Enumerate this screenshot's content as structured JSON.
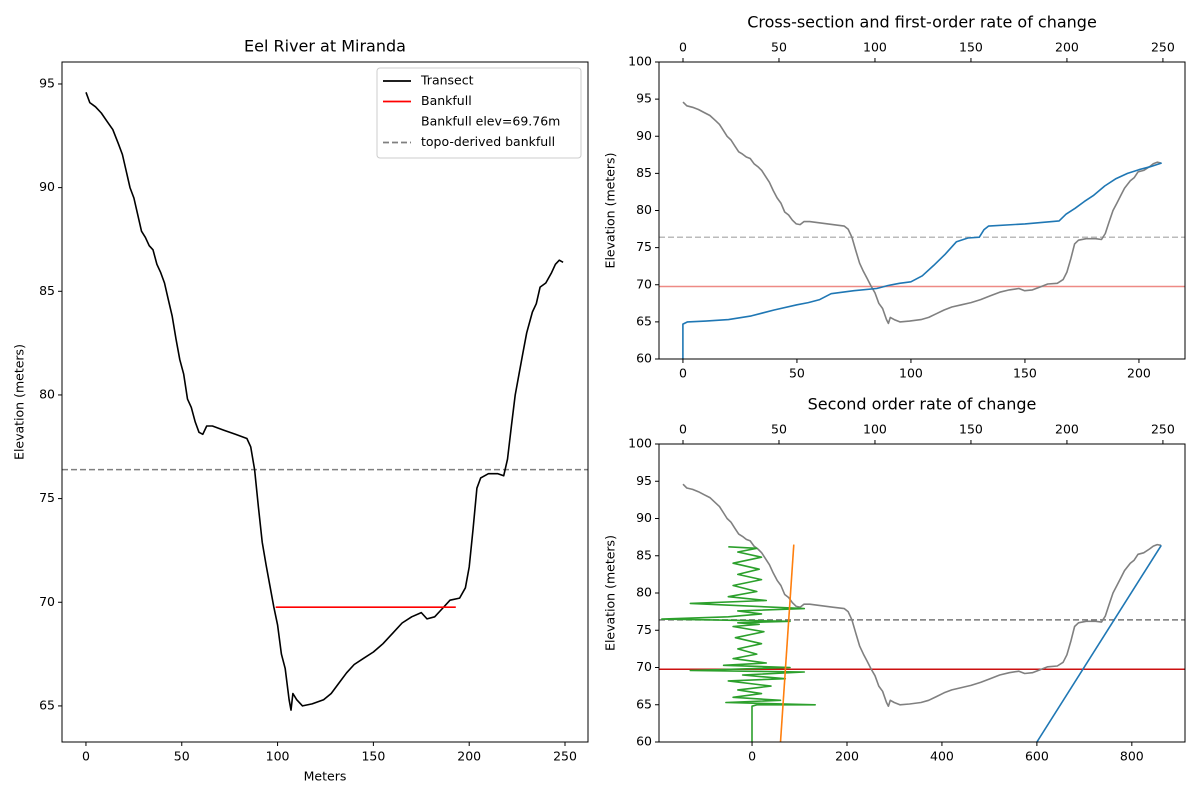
{
  "chart_data": [
    {
      "type": "line",
      "title": "Eel River at Miranda",
      "xlabel": "Meters",
      "ylabel": "Elevation (meters)",
      "xlim": [
        -12.5,
        262
      ],
      "xticks": [
        0,
        50,
        100,
        150,
        200,
        250
      ],
      "ylim": [
        63.26,
        96.06
      ],
      "yticks": [
        65,
        70,
        75,
        80,
        85,
        90,
        95
      ],
      "legend": "upper right",
      "legend_note": "Bankfull elev=69.76m",
      "series": [
        {
          "name": "Transect",
          "color": "#000000",
          "x": [
            0,
            2,
            5,
            8,
            11,
            14,
            17,
            19,
            21,
            23,
            25,
            27,
            29,
            31,
            33,
            35,
            37,
            39,
            41,
            43,
            45,
            47,
            49,
            51,
            53,
            55,
            57,
            59,
            61,
            63,
            66,
            72,
            78,
            84,
            86,
            88,
            90,
            92,
            94,
            96,
            98,
            100,
            102,
            104,
            106,
            107,
            108,
            110,
            113,
            118,
            124,
            128,
            132,
            136,
            140,
            145,
            150,
            155,
            160,
            165,
            170,
            175,
            178,
            182,
            186,
            190,
            195,
            198,
            200,
            202,
            204,
            206,
            210,
            215,
            218,
            220,
            222,
            224,
            226,
            228,
            230,
            233,
            235,
            237,
            240,
            243,
            245,
            247,
            249
          ],
          "values": [
            94.6,
            94.1,
            93.9,
            93.6,
            93.2,
            92.8,
            92.1,
            91.6,
            90.8,
            90.0,
            89.5,
            88.7,
            87.9,
            87.6,
            87.2,
            87.0,
            86.3,
            85.9,
            85.4,
            84.6,
            83.8,
            82.7,
            81.7,
            81.0,
            79.8,
            79.4,
            78.7,
            78.2,
            78.1,
            78.5,
            78.5,
            78.3,
            78.1,
            77.9,
            77.5,
            76.4,
            74.6,
            72.9,
            71.8,
            70.8,
            69.8,
            68.9,
            67.5,
            66.8,
            65.3,
            64.8,
            65.6,
            65.3,
            65.0,
            65.1,
            65.3,
            65.6,
            66.1,
            66.6,
            67.0,
            67.3,
            67.6,
            68.0,
            68.5,
            69.0,
            69.3,
            69.5,
            69.2,
            69.3,
            69.7,
            70.1,
            70.2,
            70.7,
            71.7,
            73.5,
            75.5,
            76.0,
            76.2,
            76.2,
            76.1,
            76.9,
            78.5,
            80.0,
            81.0,
            82.0,
            83.0,
            84.0,
            84.4,
            85.2,
            85.4,
            85.9,
            86.3,
            86.5,
            86.4
          ]
        },
        {
          "name": "Bankfull",
          "color": "#ff0000",
          "x": [
            99,
            193
          ],
          "values": [
            69.76,
            69.76
          ]
        }
      ],
      "hlines": [
        {
          "name": "topo-derived bankfull",
          "value": 76.4,
          "color": "#808080",
          "dash": true
        }
      ]
    },
    {
      "type": "line",
      "title": "Cross-section and first-order rate of change",
      "ylabel": "Elevation (meters)",
      "xlim": [
        -10.5,
        220.2
      ],
      "xticks": [
        0,
        50,
        100,
        150,
        200
      ],
      "x2lim": [
        -12.5,
        261.5
      ],
      "x2ticks": [
        0,
        50,
        100,
        150,
        200,
        250
      ],
      "ylim": [
        60,
        100
      ],
      "yticks": [
        60,
        65,
        70,
        75,
        80,
        85,
        90,
        95,
        100
      ],
      "series": [
        {
          "color": "#808080",
          "axis": "x2",
          "x": [
            0,
            2,
            5,
            8,
            11,
            14,
            17,
            19,
            21,
            23,
            25,
            27,
            29,
            31,
            33,
            35,
            37,
            39,
            41,
            43,
            45,
            47,
            49,
            51,
            53,
            55,
            57,
            59,
            61,
            63,
            66,
            72,
            78,
            84,
            86,
            88,
            90,
            92,
            94,
            96,
            98,
            100,
            102,
            104,
            106,
            107,
            108,
            110,
            113,
            118,
            124,
            128,
            132,
            136,
            140,
            145,
            150,
            155,
            160,
            165,
            170,
            175,
            178,
            182,
            186,
            190,
            195,
            198,
            200,
            202,
            204,
            206,
            210,
            215,
            218,
            220,
            222,
            224,
            226,
            228,
            230,
            233,
            235,
            237,
            240,
            243,
            245,
            247,
            249
          ],
          "values": [
            94.6,
            94.1,
            93.9,
            93.6,
            93.2,
            92.8,
            92.1,
            91.6,
            90.8,
            90.0,
            89.5,
            88.7,
            87.9,
            87.6,
            87.2,
            87.0,
            86.3,
            85.9,
            85.4,
            84.6,
            83.8,
            82.7,
            81.7,
            81.0,
            79.8,
            79.4,
            78.7,
            78.2,
            78.1,
            78.5,
            78.5,
            78.3,
            78.1,
            77.9,
            77.5,
            76.4,
            74.6,
            72.9,
            71.8,
            70.8,
            69.8,
            68.9,
            67.5,
            66.8,
            65.3,
            64.8,
            65.6,
            65.3,
            65.0,
            65.1,
            65.3,
            65.6,
            66.1,
            66.6,
            67.0,
            67.3,
            67.6,
            68.0,
            68.5,
            69.0,
            69.3,
            69.5,
            69.2,
            69.3,
            69.7,
            70.1,
            70.2,
            70.7,
            71.7,
            73.5,
            75.5,
            76.0,
            76.2,
            76.2,
            76.1,
            76.9,
            78.5,
            80.0,
            81.0,
            82.0,
            83.0,
            84.0,
            84.4,
            85.2,
            85.4,
            85.9,
            86.3,
            86.5,
            86.4
          ]
        },
        {
          "color": "#1f77b4",
          "x": [
            0,
            0,
            2,
            10,
            20,
            30,
            40,
            50,
            55,
            60,
            65,
            75,
            85,
            90,
            95,
            100,
            105,
            110,
            115,
            120,
            125,
            130,
            132,
            134,
            150,
            165,
            168,
            172,
            176,
            180,
            185,
            190,
            195,
            200,
            205,
            210
          ],
          "values": [
            60,
            64.7,
            65.0,
            65.1,
            65.3,
            65.8,
            66.6,
            67.3,
            67.6,
            68.0,
            68.8,
            69.2,
            69.5,
            69.9,
            70.2,
            70.4,
            71.2,
            72.6,
            74.1,
            75.8,
            76.3,
            76.4,
            77.4,
            77.9,
            78.2,
            78.6,
            79.5,
            80.3,
            81.2,
            82.0,
            83.3,
            84.3,
            85.0,
            85.5,
            85.9,
            86.4
          ]
        }
      ],
      "hlines": [
        {
          "value": 69.76,
          "color": "#ee8a85",
          "dash": false
        },
        {
          "value": 76.4,
          "color": "#bbbbbb",
          "dash": true
        }
      ]
    },
    {
      "type": "line",
      "title": "Second order rate of change",
      "ylabel": "Elevation (meters)",
      "xlim": [
        -196,
        912
      ],
      "xticks": [
        0,
        200,
        400,
        600,
        800
      ],
      "x2lim": [
        -12.5,
        261.5
      ],
      "x2ticks": [
        0,
        50,
        100,
        150,
        200,
        250
      ],
      "ylim": [
        60,
        100
      ],
      "yticks": [
        60,
        65,
        70,
        75,
        80,
        85,
        90,
        95,
        100
      ],
      "series": [
        {
          "color": "#808080",
          "axis": "x2",
          "x": [
            0,
            2,
            5,
            8,
            11,
            14,
            17,
            19,
            21,
            23,
            25,
            27,
            29,
            31,
            33,
            35,
            37,
            39,
            41,
            43,
            45,
            47,
            49,
            51,
            53,
            55,
            57,
            59,
            61,
            63,
            66,
            72,
            78,
            84,
            86,
            88,
            90,
            92,
            94,
            96,
            98,
            100,
            102,
            104,
            106,
            107,
            108,
            110,
            113,
            118,
            124,
            128,
            132,
            136,
            140,
            145,
            150,
            155,
            160,
            165,
            170,
            175,
            178,
            182,
            186,
            190,
            195,
            198,
            200,
            202,
            204,
            206,
            210,
            215,
            218,
            220,
            222,
            224,
            226,
            228,
            230,
            233,
            235,
            237,
            240,
            243,
            245,
            247,
            249
          ],
          "values": [
            94.6,
            94.1,
            93.9,
            93.6,
            93.2,
            92.8,
            92.1,
            91.6,
            90.8,
            90.0,
            89.5,
            88.7,
            87.9,
            87.6,
            87.2,
            87.0,
            86.3,
            85.9,
            85.4,
            84.6,
            83.8,
            82.7,
            81.7,
            81.0,
            79.8,
            79.4,
            78.7,
            78.2,
            78.1,
            78.5,
            78.5,
            78.3,
            78.1,
            77.9,
            77.5,
            76.4,
            74.6,
            72.9,
            71.8,
            70.8,
            69.8,
            68.9,
            67.5,
            66.8,
            65.3,
            64.8,
            65.6,
            65.3,
            65.0,
            65.1,
            65.3,
            65.6,
            66.1,
            66.6,
            67.0,
            67.3,
            67.6,
            68.0,
            68.5,
            69.0,
            69.3,
            69.5,
            69.2,
            69.3,
            69.7,
            70.1,
            70.2,
            70.7,
            71.7,
            73.5,
            75.5,
            76.0,
            76.2,
            76.2,
            76.1,
            76.9,
            78.5,
            80.0,
            81.0,
            82.0,
            83.0,
            84.0,
            84.4,
            85.2,
            85.4,
            85.9,
            86.3,
            86.5,
            86.4
          ]
        },
        {
          "color": "#2ca02c",
          "x": [
            0,
            0,
            10,
            133,
            -55,
            60,
            -40,
            20,
            -30,
            40,
            -50,
            70,
            -20,
            110,
            -130,
            80,
            -60,
            30,
            -40,
            10,
            -30,
            20,
            -35,
            25,
            -40,
            15,
            -30,
            80,
            -190,
            -50,
            20,
            -30,
            110,
            -130,
            30,
            -50,
            10,
            -40,
            20,
            -30,
            15,
            -40,
            20,
            -30,
            10,
            -50
          ],
          "values": [
            60,
            64.8,
            65,
            65,
            65.3,
            65.6,
            66,
            66.5,
            67,
            67.5,
            68.2,
            68.5,
            69,
            69.4,
            69.6,
            70,
            70.3,
            70.6,
            71.2,
            71.8,
            72.5,
            73.2,
            74,
            74.8,
            75.5,
            75.8,
            76,
            76.2,
            76.5,
            76.8,
            77.2,
            77.6,
            77.9,
            78.6,
            79,
            79.5,
            80.2,
            81,
            81.8,
            82.5,
            83.2,
            84,
            84.8,
            85.5,
            86,
            86.2
          ]
        },
        {
          "color": "#ff7f0e",
          "x": [
            60,
            88
          ],
          "values": [
            60,
            86.5
          ]
        },
        {
          "color": "#1f77b4",
          "x": [
            600,
            862
          ],
          "values": [
            60,
            86.4
          ]
        }
      ],
      "hlines": [
        {
          "value": 69.76,
          "color": "#cc1111",
          "dash": false
        },
        {
          "value": 76.4,
          "color": "#777777",
          "dash": true
        }
      ]
    }
  ]
}
